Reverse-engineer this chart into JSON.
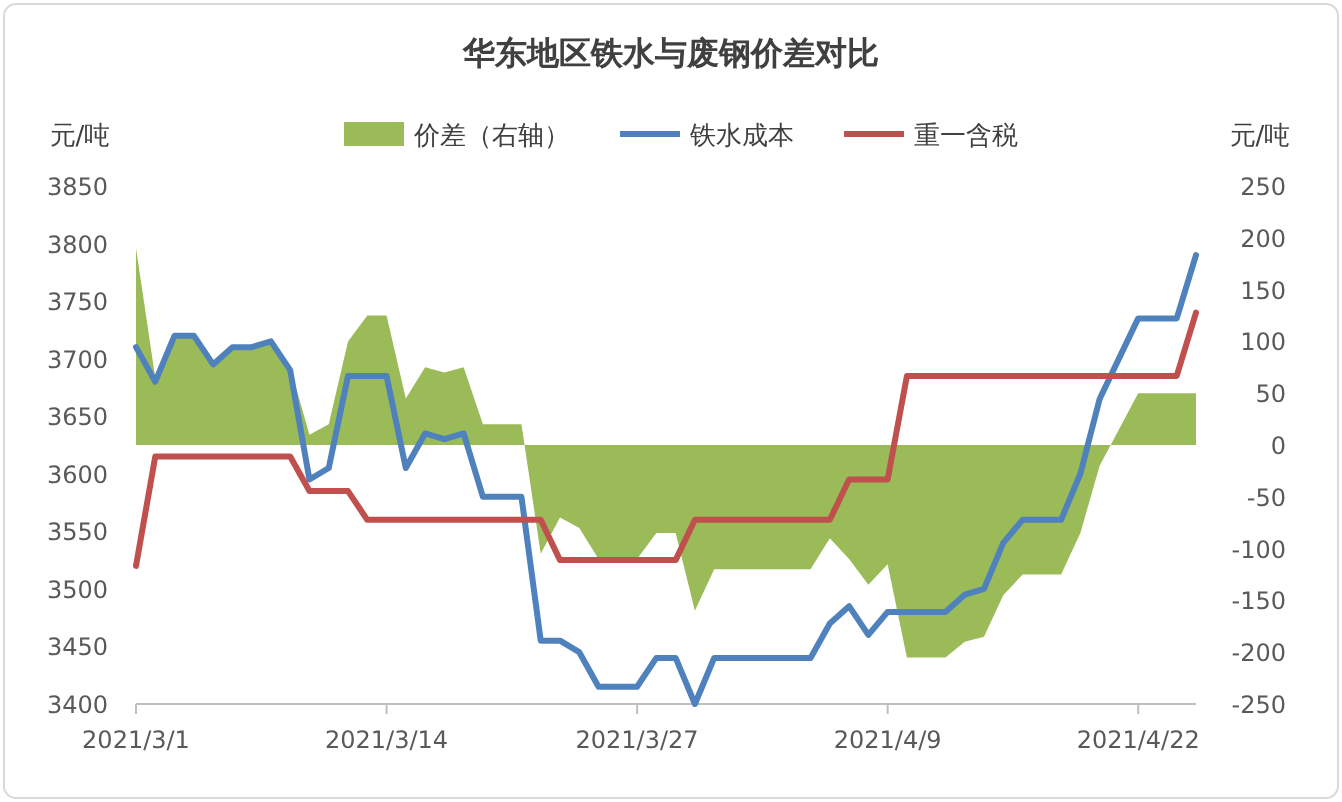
{
  "chart_data": {
    "type": "line",
    "title": "华东地区铁水与废钢价差对比",
    "ylabel": "元/吨",
    "y2label": "元/吨",
    "legend": "top",
    "x": [
      "2021-03-01",
      "2021-03-02",
      "2021-03-03",
      "2021-03-04",
      "2021-03-05",
      "2021-03-06",
      "2021-03-07",
      "2021-03-08",
      "2021-03-09",
      "2021-03-10",
      "2021-03-11",
      "2021-03-12",
      "2021-03-13",
      "2021-03-14",
      "2021-03-15",
      "2021-03-16",
      "2021-03-17",
      "2021-03-18",
      "2021-03-19",
      "2021-03-20",
      "2021-03-21",
      "2021-03-22",
      "2021-03-23",
      "2021-03-24",
      "2021-03-25",
      "2021-03-26",
      "2021-03-27",
      "2021-03-28",
      "2021-03-29",
      "2021-03-30",
      "2021-03-31",
      "2021-04-01",
      "2021-04-02",
      "2021-04-03",
      "2021-04-04",
      "2021-04-05",
      "2021-04-06",
      "2021-04-07",
      "2021-04-08",
      "2021-04-09",
      "2021-04-10",
      "2021-04-11",
      "2021-04-12",
      "2021-04-13",
      "2021-04-14",
      "2021-04-15",
      "2021-04-16",
      "2021-04-17",
      "2021-04-18",
      "2021-04-19",
      "2021-04-20",
      "2021-04-21",
      "2021-04-22",
      "2021-04-23",
      "2021-04-24",
      "2021-04-25"
    ],
    "xlim": [
      "2021-03-01",
      "2021-04-25"
    ],
    "xticks": [
      {
        "value": "2021-03-01",
        "label": "2021/3/1"
      },
      {
        "value": "2021-03-14",
        "label": "2021/3/14"
      },
      {
        "value": "2021-03-27",
        "label": "2021/3/27"
      },
      {
        "value": "2021-04-09",
        "label": "2021/4/9"
      },
      {
        "value": "2021-04-22",
        "label": "2021/4/22"
      }
    ],
    "ylim": [
      3400,
      3850
    ],
    "yticks": [
      3400,
      3450,
      3500,
      3550,
      3600,
      3650,
      3700,
      3750,
      3800,
      3850
    ],
    "y2lim": [
      -250,
      250
    ],
    "y2ticks": [
      -250,
      -200,
      -150,
      -100,
      -50,
      0,
      50,
      100,
      150,
      200,
      250
    ],
    "series": [
      {
        "name": "价差（右轴）",
        "type": "area",
        "axis": "y2",
        "color": "#9bbb59",
        "values": [
          190,
          65,
          105,
          105,
          80,
          95,
          95,
          100,
          75,
          10,
          20,
          100,
          125,
          125,
          45,
          75,
          70,
          75,
          20,
          20,
          20,
          -105,
          -70,
          -80,
          -110,
          -110,
          -110,
          -85,
          -85,
          -160,
          -120,
          -120,
          -120,
          -120,
          -120,
          -120,
          -90,
          -110,
          -135,
          -115,
          -205,
          -205,
          -205,
          -190,
          -185,
          -145,
          -125,
          -125,
          -125,
          -85,
          -20,
          15,
          50,
          50,
          50,
          50
        ]
      },
      {
        "name": "铁水成本",
        "type": "line",
        "color": "#4f81bd",
        "values": [
          3710,
          3680,
          3720,
          3720,
          3695,
          3710,
          3710,
          3715,
          3690,
          3595,
          3605,
          3685,
          3685,
          3685,
          3605,
          3635,
          3630,
          3635,
          3580,
          3580,
          3580,
          3455,
          3455,
          3445,
          3415,
          3415,
          3415,
          3440,
          3440,
          3400,
          3440,
          3440,
          3440,
          3440,
          3440,
          3440,
          3470,
          3485,
          3460,
          3480,
          3480,
          3480,
          3480,
          3495,
          3500,
          3540,
          3560,
          3560,
          3560,
          3600,
          3665,
          3700,
          3735,
          3735,
          3735,
          3790
        ]
      },
      {
        "name": "重一含税",
        "type": "line",
        "color": "#c0504d",
        "values": [
          3520,
          3615,
          3615,
          3615,
          3615,
          3615,
          3615,
          3615,
          3615,
          3585,
          3585,
          3585,
          3560,
          3560,
          3560,
          3560,
          3560,
          3560,
          3560,
          3560,
          3560,
          3560,
          3525,
          3525,
          3525,
          3525,
          3525,
          3525,
          3525,
          3560,
          3560,
          3560,
          3560,
          3560,
          3560,
          3560,
          3560,
          3595,
          3595,
          3595,
          3685,
          3685,
          3685,
          3685,
          3685,
          3685,
          3685,
          3685,
          3685,
          3685,
          3685,
          3685,
          3685,
          3685,
          3685,
          3740
        ]
      }
    ]
  }
}
